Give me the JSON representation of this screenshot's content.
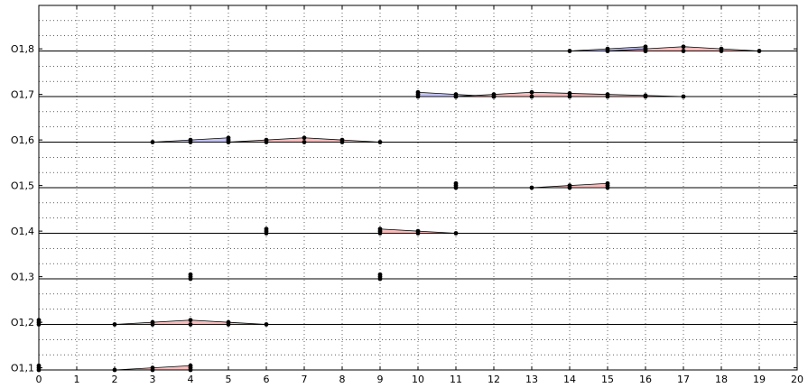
{
  "chart_data": {
    "type": "area",
    "title": "",
    "xlabel": "",
    "ylabel": "",
    "xlim": [
      0,
      20
    ],
    "x_ticks": [
      "0",
      "1",
      "2",
      "3",
      "4",
      "5",
      "6",
      "7",
      "8",
      "9",
      "10",
      "11",
      "12",
      "13",
      "14",
      "15",
      "16",
      "17",
      "18",
      "19",
      "20"
    ],
    "y_tick_labels": [
      "O1,1",
      "O1,2",
      "O1,3",
      "O1,4",
      "O1,5",
      "O1,6",
      "O1,7",
      "O1,8"
    ],
    "grid": true,
    "colors": {
      "red": "#f4a0a0",
      "blue": "#a8a8f0",
      "line": "#000000"
    },
    "level_height": 0.07,
    "rows": [
      {
        "label": "O1,1",
        "shapes": [
          {
            "type": "triangle",
            "color": "red",
            "points": [
              [
                2,
                0
              ],
              [
                4,
                0.07
              ],
              [
                4,
                0
              ]
            ]
          },
          {
            "type": "stem",
            "x": 0,
            "points": [
              0,
              0.035,
              0.07
            ]
          }
        ]
      },
      {
        "label": "O1,2",
        "shapes": [
          {
            "type": "triangle",
            "color": "red",
            "points": [
              [
                2,
                0
              ],
              [
                4,
                0.07
              ],
              [
                6,
                0
              ]
            ]
          },
          {
            "type": "stem",
            "x": 0,
            "points": [
              0,
              0.035,
              0.07
            ]
          }
        ]
      },
      {
        "label": "O1,3",
        "shapes": [
          {
            "type": "stem",
            "x": 4,
            "points": [
              0,
              0.035,
              0.07
            ]
          },
          {
            "type": "stem",
            "x": 9,
            "points": [
              0,
              0.035,
              0.07
            ]
          }
        ]
      },
      {
        "label": "O1,4",
        "shapes": [
          {
            "type": "stem",
            "x": 6,
            "points": [
              0,
              0.035,
              0.07
            ]
          },
          {
            "type": "triangle",
            "color": "red",
            "points": [
              [
                9,
                0
              ],
              [
                9,
                0.07
              ],
              [
                11,
                0
              ]
            ]
          }
        ]
      },
      {
        "label": "O1,5",
        "shapes": [
          {
            "type": "stem",
            "x": 11,
            "points": [
              0,
              0.035,
              0.07
            ]
          },
          {
            "type": "triangle",
            "color": "red",
            "points": [
              [
                13,
                0
              ],
              [
                15,
                0.07
              ],
              [
                15,
                0
              ]
            ]
          }
        ]
      },
      {
        "label": "O1,6",
        "shapes": [
          {
            "type": "triangle",
            "color": "blue",
            "points": [
              [
                3,
                0
              ],
              [
                5,
                0.07
              ],
              [
                5,
                0
              ]
            ]
          },
          {
            "type": "triangle",
            "color": "red",
            "points": [
              [
                5,
                0
              ],
              [
                7,
                0.07
              ],
              [
                9,
                0
              ]
            ]
          }
        ]
      },
      {
        "label": "O1,7",
        "shapes": [
          {
            "type": "triangle",
            "color": "blue",
            "points": [
              [
                10,
                0
              ],
              [
                10,
                0.07
              ],
              [
                12,
                0
              ]
            ]
          },
          {
            "type": "triangle",
            "color": "red",
            "points": [
              [
                11,
                0
              ],
              [
                13,
                0.07
              ],
              [
                17,
                0
              ]
            ]
          }
        ]
      },
      {
        "label": "O1,8",
        "shapes": [
          {
            "type": "triangle",
            "color": "blue",
            "points": [
              [
                14,
                0
              ],
              [
                16,
                0.07
              ],
              [
                16,
                0
              ]
            ]
          },
          {
            "type": "triangle",
            "color": "red",
            "points": [
              [
                15,
                0
              ],
              [
                17,
                0.07
              ],
              [
                19,
                0
              ]
            ]
          }
        ]
      }
    ]
  }
}
